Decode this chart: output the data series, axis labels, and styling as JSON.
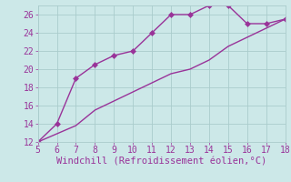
{
  "xlabel": "Windchill (Refroidissement éolien,°C)",
  "line1_x": [
    5,
    6,
    7,
    8,
    9,
    10,
    11,
    12,
    13,
    14,
    15,
    16,
    17,
    18
  ],
  "line1_y": [
    12,
    14,
    19,
    20.5,
    21.5,
    22,
    24,
    26,
    26,
    27,
    27,
    25,
    25,
    25.5
  ],
  "line2_x": [
    5,
    6,
    7,
    8,
    9,
    10,
    11,
    12,
    13,
    14,
    15,
    16,
    17,
    18
  ],
  "line2_y": [
    12,
    12.9,
    13.8,
    15.5,
    16.5,
    17.5,
    18.5,
    19.5,
    20,
    21,
    22.5,
    23.5,
    24.5,
    25.5
  ],
  "line_color": "#993399",
  "bg_color": "#cce8e8",
  "grid_color": "#aacccc",
  "tick_color": "#993399",
  "label_color": "#993399",
  "xlim": [
    5,
    18
  ],
  "ylim": [
    12,
    27
  ],
  "xticks": [
    5,
    6,
    7,
    8,
    9,
    10,
    11,
    12,
    13,
    14,
    15,
    16,
    17,
    18
  ],
  "yticks": [
    12,
    14,
    16,
    18,
    20,
    22,
    24,
    26
  ],
  "markersize": 3,
  "linewidth": 1.0,
  "xlabel_fontsize": 7.5,
  "tick_fontsize": 7
}
